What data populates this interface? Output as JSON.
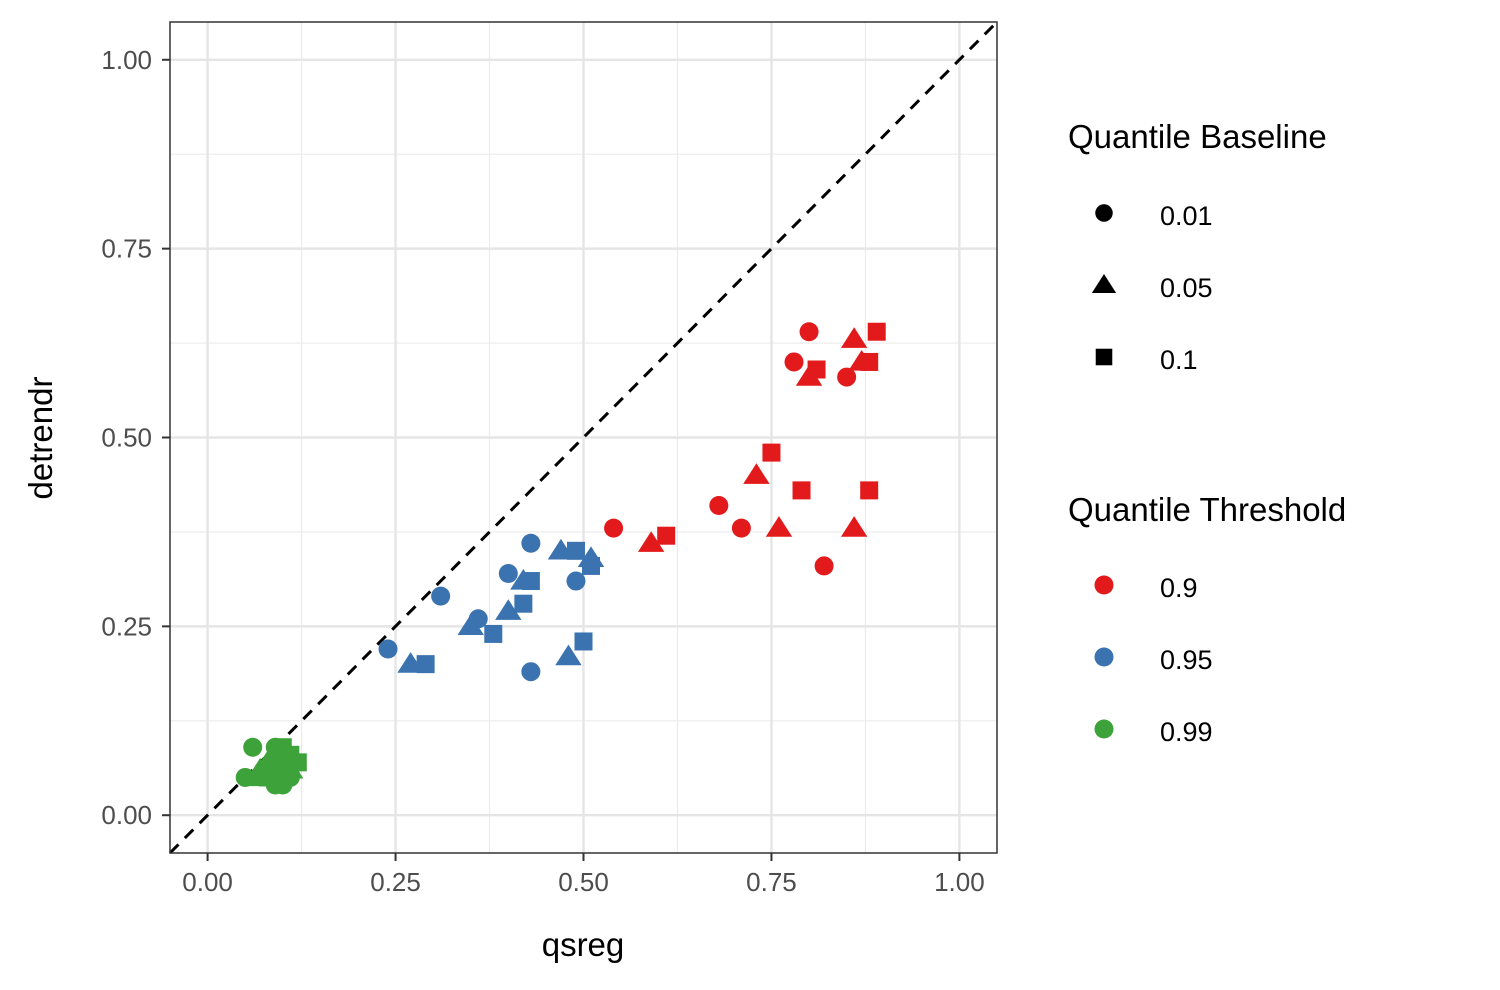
{
  "chart_data": {
    "type": "scatter",
    "xlabel": "qsreg",
    "ylabel": "detrendr",
    "xlim": [
      -0.05,
      1.05
    ],
    "ylim": [
      -0.05,
      1.05
    ],
    "x_ticks": [
      0.0,
      0.25,
      0.5,
      0.75,
      1.0
    ],
    "y_ticks": [
      0.0,
      0.25,
      0.5,
      0.75,
      1.0
    ],
    "x_tick_labels": [
      "0.00",
      "0.25",
      "0.50",
      "0.75",
      "1.00"
    ],
    "y_tick_labels": [
      "0.00",
      "0.25",
      "0.50",
      "0.75",
      "1.00"
    ],
    "grid": true,
    "reference_line": {
      "type": "identity",
      "style": "dashed",
      "color": "#000000"
    },
    "legends": [
      {
        "title": "Quantile Baseline",
        "entries": [
          {
            "label": "0.01",
            "shape": "circle"
          },
          {
            "label": "0.05",
            "shape": "triangle"
          },
          {
            "label": "0.1",
            "shape": "square"
          }
        ]
      },
      {
        "title": "Quantile Threshold",
        "entries": [
          {
            "label": "0.9",
            "color": "#e31a1c"
          },
          {
            "label": "0.95",
            "color": "#3a73b0"
          },
          {
            "label": "0.99",
            "color": "#3ea23a"
          }
        ]
      }
    ],
    "series": [
      {
        "threshold": "0.9",
        "baseline": "0.01",
        "color": "#e31a1c",
        "shape": "circle",
        "points": [
          [
            0.8,
            0.64
          ],
          [
            0.78,
            0.6
          ],
          [
            0.85,
            0.58
          ],
          [
            0.54,
            0.38
          ],
          [
            0.68,
            0.41
          ],
          [
            0.71,
            0.38
          ],
          [
            0.82,
            0.33
          ]
        ]
      },
      {
        "threshold": "0.9",
        "baseline": "0.05",
        "color": "#e31a1c",
        "shape": "triangle",
        "points": [
          [
            0.86,
            0.63
          ],
          [
            0.87,
            0.6
          ],
          [
            0.8,
            0.58
          ],
          [
            0.73,
            0.45
          ],
          [
            0.59,
            0.36
          ],
          [
            0.76,
            0.38
          ],
          [
            0.86,
            0.38
          ]
        ]
      },
      {
        "threshold": "0.9",
        "baseline": "0.1",
        "color": "#e31a1c",
        "shape": "square",
        "points": [
          [
            0.89,
            0.64
          ],
          [
            0.88,
            0.6
          ],
          [
            0.81,
            0.59
          ],
          [
            0.75,
            0.48
          ],
          [
            0.79,
            0.43
          ],
          [
            0.88,
            0.43
          ],
          [
            0.61,
            0.37
          ]
        ]
      },
      {
        "threshold": "0.95",
        "baseline": "0.01",
        "color": "#3a73b0",
        "shape": "circle",
        "points": [
          [
            0.43,
            0.36
          ],
          [
            0.4,
            0.32
          ],
          [
            0.49,
            0.31
          ],
          [
            0.31,
            0.29
          ],
          [
            0.36,
            0.26
          ],
          [
            0.24,
            0.22
          ],
          [
            0.43,
            0.19
          ]
        ]
      },
      {
        "threshold": "0.95",
        "baseline": "0.05",
        "color": "#3a73b0",
        "shape": "triangle",
        "points": [
          [
            0.47,
            0.35
          ],
          [
            0.51,
            0.34
          ],
          [
            0.42,
            0.31
          ],
          [
            0.4,
            0.27
          ],
          [
            0.35,
            0.25
          ],
          [
            0.27,
            0.2
          ],
          [
            0.48,
            0.21
          ]
        ]
      },
      {
        "threshold": "0.95",
        "baseline": "0.1",
        "color": "#3a73b0",
        "shape": "square",
        "points": [
          [
            0.49,
            0.35
          ],
          [
            0.51,
            0.33
          ],
          [
            0.43,
            0.31
          ],
          [
            0.42,
            0.28
          ],
          [
            0.38,
            0.24
          ],
          [
            0.29,
            0.2
          ],
          [
            0.5,
            0.23
          ]
        ]
      },
      {
        "threshold": "0.99",
        "baseline": "0.01",
        "color": "#3ea23a",
        "shape": "circle",
        "points": [
          [
            0.06,
            0.09
          ],
          [
            0.05,
            0.05
          ],
          [
            0.08,
            0.06
          ],
          [
            0.09,
            0.04
          ],
          [
            0.1,
            0.04
          ],
          [
            0.11,
            0.05
          ],
          [
            0.09,
            0.09
          ]
        ]
      },
      {
        "threshold": "0.99",
        "baseline": "0.05",
        "color": "#3ea23a",
        "shape": "triangle",
        "points": [
          [
            0.07,
            0.06
          ],
          [
            0.08,
            0.07
          ],
          [
            0.1,
            0.08
          ],
          [
            0.11,
            0.06
          ],
          [
            0.09,
            0.05
          ],
          [
            0.1,
            0.07
          ],
          [
            0.07,
            0.05
          ]
        ]
      },
      {
        "threshold": "0.99",
        "baseline": "0.1",
        "color": "#3ea23a",
        "shape": "square",
        "points": [
          [
            0.1,
            0.09
          ],
          [
            0.12,
            0.07
          ],
          [
            0.11,
            0.06
          ],
          [
            0.09,
            0.07
          ],
          [
            0.1,
            0.06
          ],
          [
            0.08,
            0.05
          ],
          [
            0.11,
            0.08
          ]
        ]
      }
    ]
  }
}
